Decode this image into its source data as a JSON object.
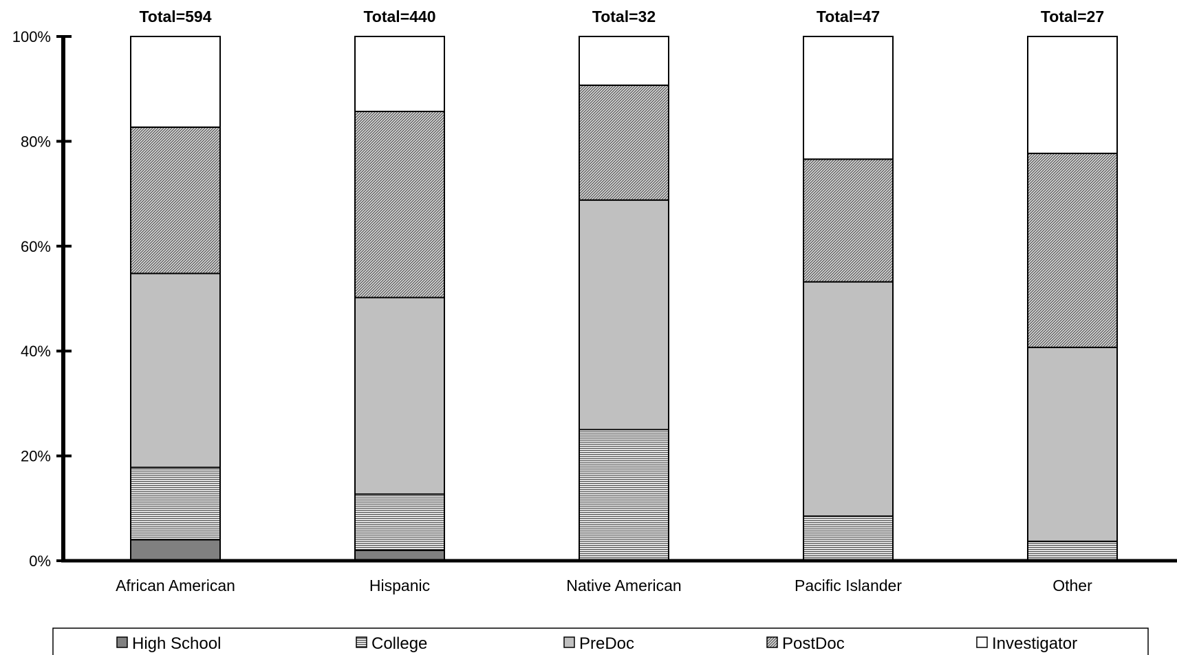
{
  "chart_data": {
    "type": "bar",
    "stacked": true,
    "categories": [
      "African American",
      "Hispanic",
      "Native American",
      "Pacific Islander",
      "Other"
    ],
    "totals": [
      "Total=594",
      "Total=440",
      "Total=32",
      "Total=47",
      "Total=27"
    ],
    "series": [
      {
        "name": "High School",
        "values": [
          4,
          2,
          0,
          0,
          0
        ]
      },
      {
        "name": "College",
        "values": [
          13.8,
          10.7,
          25,
          8.5,
          3.7
        ]
      },
      {
        "name": "PreDoc",
        "values": [
          37,
          37.5,
          43.8,
          44.7,
          37
        ]
      },
      {
        "name": "PostDoc",
        "values": [
          27.9,
          35.5,
          21.9,
          23.4,
          37
        ]
      },
      {
        "name": "Investigator",
        "values": [
          17.3,
          14.3,
          9.3,
          23.4,
          22.3
        ]
      }
    ],
    "ylim": [
      0,
      100
    ],
    "yticks": [
      "0%",
      "20%",
      "40%",
      "60%",
      "80%",
      "100%"
    ],
    "legend_position": "bottom",
    "grid": false,
    "colors": {
      "High School": "#808080",
      "College": "#d0d0d0",
      "PreDoc": "#c0c0c0",
      "PostDoc": "#a8a8a8",
      "Investigator": "#ffffff"
    }
  }
}
